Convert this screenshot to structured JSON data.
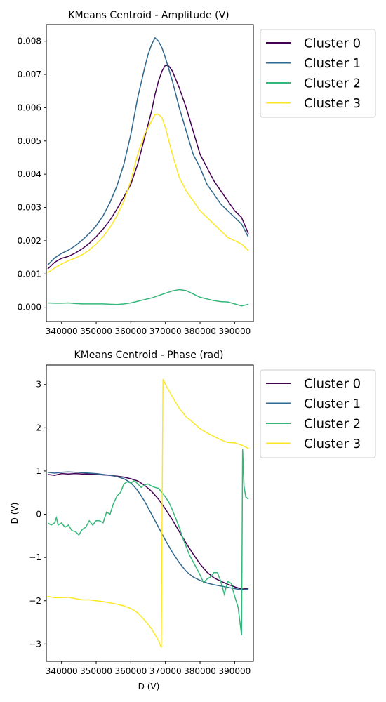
{
  "chart_data": [
    {
      "type": "line",
      "title": "KMeans Centroid - Amplitude (V)",
      "xlabel": "",
      "ylabel": "",
      "xlim": [
        335600,
        395400
      ],
      "ylim": [
        -0.00043,
        0.0085
      ],
      "xticks": [
        340000,
        350000,
        360000,
        370000,
        380000,
        390000
      ],
      "xtick_labels": [
        "340000",
        "350000",
        "360000",
        "370000",
        "380000",
        "390000"
      ],
      "yticks": [
        0,
        0.001,
        0.002,
        0.003,
        0.004,
        0.005,
        0.006,
        0.007,
        0.008
      ],
      "ytick_labels": [
        "0.000",
        "0.001",
        "0.002",
        "0.003",
        "0.004",
        "0.005",
        "0.006",
        "0.007",
        "0.008"
      ],
      "grid": false,
      "legend": "outside-right-top",
      "series": [
        {
          "name": "Cluster 0",
          "color": "#440154",
          "x": [
            336000,
            338000,
            340000,
            342000,
            344000,
            346000,
            348000,
            350000,
            352000,
            354000,
            356000,
            358000,
            360000,
            362000,
            364000,
            366000,
            367000,
            368000,
            369000,
            370000,
            371000,
            372000,
            374000,
            376000,
            378000,
            380000,
            382000,
            384000,
            386000,
            388000,
            390000,
            392000,
            394000
          ],
          "y": [
            0.00115,
            0.00135,
            0.00147,
            0.00153,
            0.00163,
            0.00176,
            0.00192,
            0.00212,
            0.00235,
            0.00262,
            0.00295,
            0.00332,
            0.0037,
            0.0043,
            0.0051,
            0.0059,
            0.0064,
            0.0068,
            0.0071,
            0.00728,
            0.00725,
            0.0071,
            0.0066,
            0.006,
            0.0053,
            0.0046,
            0.0042,
            0.0038,
            0.0035,
            0.0032,
            0.0029,
            0.0027,
            0.0022
          ]
        },
        {
          "name": "Cluster 1",
          "color": "#31688e",
          "x": [
            336000,
            338000,
            340000,
            342000,
            344000,
            346000,
            348000,
            350000,
            352000,
            354000,
            356000,
            358000,
            360000,
            362000,
            364000,
            365000,
            366000,
            367000,
            368000,
            369000,
            370000,
            372000,
            374000,
            376000,
            378000,
            380000,
            382000,
            384000,
            386000,
            388000,
            390000,
            392000,
            394000
          ],
          "y": [
            0.00127,
            0.00148,
            0.00162,
            0.00172,
            0.00185,
            0.00202,
            0.00222,
            0.00245,
            0.00275,
            0.00315,
            0.00365,
            0.0043,
            0.0052,
            0.0063,
            0.0072,
            0.0076,
            0.0079,
            0.0081,
            0.008,
            0.0078,
            0.0075,
            0.0068,
            0.006,
            0.0053,
            0.0046,
            0.0042,
            0.0037,
            0.0034,
            0.0031,
            0.0029,
            0.0027,
            0.0025,
            0.0021
          ]
        },
        {
          "name": "Cluster 2",
          "color": "#35b779",
          "x": [
            336000,
            338000,
            340000,
            342000,
            344000,
            346000,
            348000,
            350000,
            352000,
            354000,
            356000,
            358000,
            360000,
            362000,
            364000,
            366000,
            368000,
            370000,
            372000,
            374000,
            376000,
            378000,
            380000,
            382000,
            384000,
            386000,
            388000,
            390000,
            392000,
            394000
          ],
          "y": [
            0.00013,
            0.00012,
            0.00012,
            0.00013,
            0.00011,
            0.0001,
            0.0001,
            0.0001,
            0.0001,
            9e-05,
            8e-05,
            0.0001,
            0.00013,
            0.00018,
            0.00023,
            0.00028,
            0.00035,
            0.00042,
            0.00049,
            0.00053,
            0.0005,
            0.0004,
            0.0003,
            0.00025,
            0.0002,
            0.00017,
            0.00016,
            0.0001,
            4e-05,
            9e-05
          ]
        },
        {
          "name": "Cluster 3",
          "color": "#fde725",
          "x": [
            336000,
            338000,
            340000,
            342000,
            344000,
            346000,
            348000,
            350000,
            352000,
            354000,
            356000,
            358000,
            360000,
            362000,
            364000,
            366000,
            367000,
            368000,
            369000,
            370000,
            372000,
            374000,
            376000,
            378000,
            380000,
            382000,
            384000,
            386000,
            388000,
            390000,
            392000,
            394000
          ],
          "y": [
            0.00104,
            0.00118,
            0.0013,
            0.0014,
            0.00148,
            0.00158,
            0.00172,
            0.0019,
            0.00212,
            0.0024,
            0.00275,
            0.0032,
            0.0038,
            0.0046,
            0.0052,
            0.0056,
            0.0058,
            0.0058,
            0.0057,
            0.0054,
            0.0046,
            0.0039,
            0.0035,
            0.0032,
            0.0029,
            0.0027,
            0.0025,
            0.0023,
            0.0021,
            0.002,
            0.0019,
            0.0017
          ]
        }
      ]
    },
    {
      "type": "line",
      "title": "KMeans Centroid - Phase (rad)",
      "xlabel": "D (V)",
      "ylabel": "D (V)",
      "xlim": [
        335600,
        395400
      ],
      "ylim": [
        -3.4,
        3.45
      ],
      "xticks": [
        340000,
        350000,
        360000,
        370000,
        380000,
        390000
      ],
      "xtick_labels": [
        "340000",
        "350000",
        "360000",
        "370000",
        "380000",
        "390000"
      ],
      "yticks": [
        -3,
        -2,
        -1,
        0,
        1,
        2,
        3
      ],
      "ytick_labels": [
        "−3",
        "−2",
        "−1",
        "0",
        "1",
        "2",
        "3"
      ],
      "grid": false,
      "legend": "outside-right-top",
      "series": [
        {
          "name": "Cluster 0",
          "color": "#440154",
          "x": [
            336000,
            338000,
            340000,
            342000,
            344000,
            346000,
            348000,
            350000,
            352000,
            354000,
            356000,
            358000,
            360000,
            362000,
            364000,
            366000,
            368000,
            370000,
            372000,
            374000,
            376000,
            378000,
            380000,
            382000,
            384000,
            386000,
            388000,
            390000,
            392000,
            394000
          ],
          "y": [
            0.92,
            0.9,
            0.94,
            0.93,
            0.94,
            0.93,
            0.93,
            0.92,
            0.91,
            0.9,
            0.88,
            0.86,
            0.82,
            0.77,
            0.67,
            0.53,
            0.35,
            0.12,
            -0.13,
            -0.4,
            -0.67,
            -0.92,
            -1.15,
            -1.34,
            -1.47,
            -1.55,
            -1.62,
            -1.68,
            -1.73,
            -1.72
          ]
        },
        {
          "name": "Cluster 1",
          "color": "#31688e",
          "x": [
            336000,
            338000,
            340000,
            342000,
            344000,
            346000,
            348000,
            350000,
            352000,
            354000,
            356000,
            358000,
            360000,
            362000,
            364000,
            366000,
            368000,
            370000,
            372000,
            374000,
            376000,
            378000,
            380000,
            382000,
            384000,
            386000,
            388000,
            390000,
            392000,
            394000
          ],
          "y": [
            0.97,
            0.95,
            0.97,
            0.98,
            0.97,
            0.96,
            0.95,
            0.94,
            0.92,
            0.9,
            0.87,
            0.82,
            0.73,
            0.55,
            0.3,
            0.0,
            -0.3,
            -0.6,
            -0.88,
            -1.12,
            -1.32,
            -1.45,
            -1.53,
            -1.59,
            -1.63,
            -1.66,
            -1.69,
            -1.72,
            -1.75,
            -1.73
          ]
        },
        {
          "name": "Cluster 2",
          "color": "#35b779",
          "x": [
            336000,
            337000,
            338000,
            338500,
            339000,
            340000,
            341000,
            342000,
            343000,
            344000,
            345000,
            346000,
            347000,
            348000,
            349000,
            350000,
            351000,
            352000,
            353000,
            354000,
            355000,
            356000,
            357000,
            358000,
            359000,
            360000,
            361000,
            362000,
            363000,
            364000,
            365000,
            366000,
            367000,
            368000,
            369000,
            370000,
            371000,
            372000,
            373000,
            374000,
            375000,
            376000,
            377000,
            378000,
            379000,
            380000,
            381000,
            382000,
            383000,
            384000,
            385000,
            386000,
            387000,
            388000,
            389000,
            390000,
            391000,
            392000,
            392300,
            392700,
            393200,
            394000
          ],
          "y": [
            -0.2,
            -0.25,
            -0.2,
            -0.08,
            -0.25,
            -0.2,
            -0.3,
            -0.25,
            -0.38,
            -0.4,
            -0.48,
            -0.35,
            -0.3,
            -0.15,
            -0.25,
            -0.15,
            -0.15,
            -0.2,
            0.05,
            0.0,
            0.25,
            0.42,
            0.5,
            0.7,
            0.75,
            0.72,
            0.78,
            0.7,
            0.62,
            0.68,
            0.7,
            0.65,
            0.62,
            0.6,
            0.5,
            0.4,
            0.28,
            0.1,
            -0.1,
            -0.3,
            -0.55,
            -0.75,
            -0.95,
            -1.1,
            -1.25,
            -1.4,
            -1.58,
            -1.5,
            -1.45,
            -1.35,
            -1.35,
            -1.55,
            -1.85,
            -1.55,
            -1.6,
            -1.9,
            -2.15,
            -2.8,
            1.5,
            0.65,
            0.4,
            0.35
          ]
        },
        {
          "name": "Cluster 3",
          "color": "#fde725",
          "x": [
            336000,
            338000,
            340000,
            342000,
            344000,
            346000,
            348000,
            350000,
            352000,
            354000,
            356000,
            358000,
            360000,
            362000,
            364000,
            366000,
            368000,
            368800,
            369300,
            370000,
            372000,
            374000,
            376000,
            378000,
            380000,
            382000,
            384000,
            386000,
            388000,
            390000,
            392000,
            394000
          ],
          "y": [
            -1.9,
            -1.93,
            -1.93,
            -1.92,
            -1.95,
            -1.98,
            -1.98,
            -2.0,
            -2.02,
            -2.05,
            -2.08,
            -2.12,
            -2.18,
            -2.28,
            -2.45,
            -2.65,
            -2.92,
            -3.08,
            3.12,
            3.0,
            2.72,
            2.45,
            2.25,
            2.12,
            1.98,
            1.88,
            1.8,
            1.72,
            1.66,
            1.65,
            1.6,
            1.52
          ]
        }
      ]
    }
  ]
}
